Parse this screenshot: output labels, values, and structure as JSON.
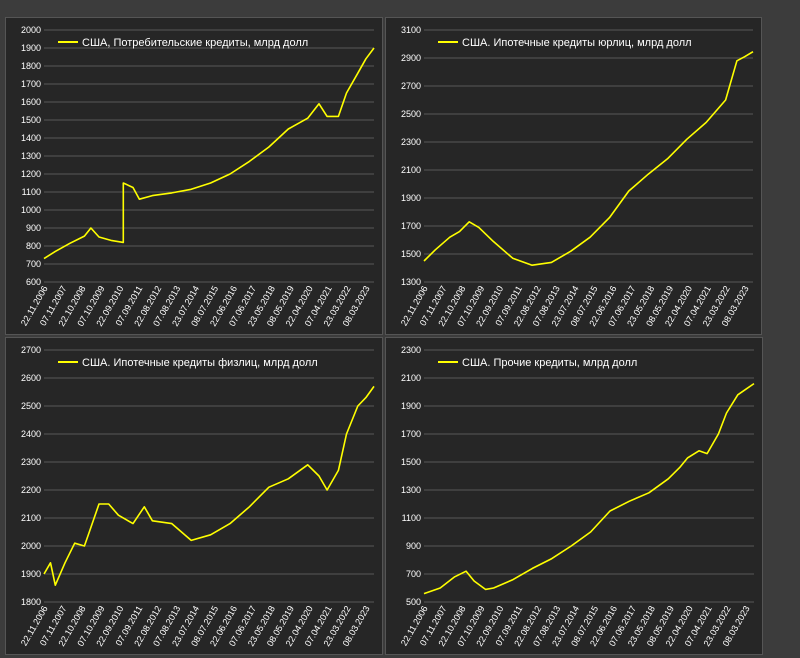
{
  "colors": {
    "background": "#3c3c3c",
    "panel": "#262626",
    "grid": "#8a8a8a",
    "series": "#ffff00",
    "text": "#ffffff"
  },
  "x_tick_labels": [
    "22.11.2006",
    "07.11.2007",
    "22.10.2008",
    "07.10.2009",
    "22.09.2010",
    "07.09.2011",
    "22.08.2012",
    "07.08.2013",
    "23.07.2014",
    "08.07.2015",
    "22.06.2016",
    "07.06.2017",
    "23.05.2018",
    "08.05.2019",
    "22.04.2020",
    "07.04.2021",
    "23.03.2022",
    "08.03.2023"
  ],
  "chart_data": [
    {
      "type": "line",
      "legend": "США, Потребительские кредиты, млрд долл",
      "legend_position": "top-left",
      "grid": true,
      "ylim": [
        600,
        2000
      ],
      "yticks": [
        600,
        700,
        800,
        900,
        1000,
        1100,
        1200,
        1300,
        1400,
        1500,
        1600,
        1700,
        1800,
        1900,
        2000
      ],
      "x_range": [
        "2006-11",
        "2023-11"
      ],
      "points": [
        [
          "2006-11",
          730
        ],
        [
          "2007-06",
          770
        ],
        [
          "2008-03",
          815
        ],
        [
          "2008-12",
          855
        ],
        [
          "2009-04",
          900
        ],
        [
          "2009-09",
          850
        ],
        [
          "2010-05",
          830
        ],
        [
          "2010-12",
          820
        ],
        [
          "2010-12",
          1150
        ],
        [
          "2011-06",
          1125
        ],
        [
          "2011-10",
          1060
        ],
        [
          "2012-06",
          1080
        ],
        [
          "2013-06",
          1095
        ],
        [
          "2014-06",
          1115
        ],
        [
          "2015-06",
          1150
        ],
        [
          "2016-06",
          1200
        ],
        [
          "2017-06",
          1270
        ],
        [
          "2018-06",
          1350
        ],
        [
          "2019-06",
          1450
        ],
        [
          "2020-06",
          1510
        ],
        [
          "2021-01",
          1590
        ],
        [
          "2021-06",
          1520
        ],
        [
          "2022-01",
          1520
        ],
        [
          "2022-06",
          1650
        ],
        [
          "2023-01",
          1760
        ],
        [
          "2023-06",
          1840
        ],
        [
          "2023-11",
          1900
        ]
      ]
    },
    {
      "type": "line",
      "legend": "США. Ипотечные кредиты юрлиц, млрд долл",
      "legend_position": "top-left",
      "grid": true,
      "ylim": [
        1300,
        3100
      ],
      "yticks": [
        1300,
        1500,
        1700,
        1900,
        2100,
        2300,
        2500,
        2700,
        2900,
        3100
      ],
      "x_range": [
        "2006-11",
        "2023-11"
      ],
      "points": [
        [
          "2006-11",
          1450
        ],
        [
          "2007-06",
          1530
        ],
        [
          "2008-03",
          1620
        ],
        [
          "2008-09",
          1660
        ],
        [
          "2009-03",
          1730
        ],
        [
          "2009-09",
          1690
        ],
        [
          "2010-06",
          1590
        ],
        [
          "2011-06",
          1470
        ],
        [
          "2012-06",
          1420
        ],
        [
          "2013-06",
          1440
        ],
        [
          "2014-06",
          1520
        ],
        [
          "2015-06",
          1620
        ],
        [
          "2016-06",
          1760
        ],
        [
          "2017-06",
          1950
        ],
        [
          "2018-06",
          2070
        ],
        [
          "2019-06",
          2180
        ],
        [
          "2020-06",
          2320
        ],
        [
          "2021-06",
          2440
        ],
        [
          "2022-06",
          2600
        ],
        [
          "2023-01",
          2880
        ],
        [
          "2023-06",
          2910
        ],
        [
          "2023-11",
          2945
        ]
      ]
    },
    {
      "type": "line",
      "legend": "США. Ипотечные кредиты физлиц, млрд долл",
      "legend_position": "top-left",
      "grid": true,
      "ylim": [
        1800,
        2700
      ],
      "yticks": [
        1800,
        1900,
        2000,
        2100,
        2200,
        2300,
        2400,
        2500,
        2600,
        2700
      ],
      "x_range": [
        "2006-11",
        "2023-11"
      ],
      "points": [
        [
          "2006-11",
          1900
        ],
        [
          "2007-03",
          1940
        ],
        [
          "2007-06",
          1860
        ],
        [
          "2007-12",
          1940
        ],
        [
          "2008-06",
          2010
        ],
        [
          "2008-12",
          2000
        ],
        [
          "2009-03",
          2050
        ],
        [
          "2009-09",
          2150
        ],
        [
          "2010-03",
          2150
        ],
        [
          "2010-09",
          2110
        ],
        [
          "2011-06",
          2080
        ],
        [
          "2012-01",
          2140
        ],
        [
          "2012-06",
          2090
        ],
        [
          "2013-06",
          2080
        ],
        [
          "2014-06",
          2020
        ],
        [
          "2015-06",
          2040
        ],
        [
          "2016-06",
          2080
        ],
        [
          "2017-06",
          2140
        ],
        [
          "2018-06",
          2210
        ],
        [
          "2019-06",
          2240
        ],
        [
          "2020-06",
          2290
        ],
        [
          "2021-01",
          2250
        ],
        [
          "2021-06",
          2200
        ],
        [
          "2022-01",
          2270
        ],
        [
          "2022-06",
          2400
        ],
        [
          "2023-01",
          2500
        ],
        [
          "2023-06",
          2530
        ],
        [
          "2023-11",
          2570
        ]
      ]
    },
    {
      "type": "line",
      "legend": "США. Прочие кредиты, млрд долл",
      "legend_position": "top-left",
      "grid": true,
      "ylim": [
        500,
        2300
      ],
      "yticks": [
        500,
        700,
        900,
        1100,
        1300,
        1500,
        1700,
        1900,
        2100,
        2300
      ],
      "x_range": [
        "2006-11",
        "2023-11"
      ],
      "points": [
        [
          "2006-11",
          560
        ],
        [
          "2007-09",
          600
        ],
        [
          "2008-06",
          680
        ],
        [
          "2009-01",
          720
        ],
        [
          "2009-06",
          650
        ],
        [
          "2010-01",
          590
        ],
        [
          "2010-06",
          600
        ],
        [
          "2011-06",
          660
        ],
        [
          "2012-06",
          740
        ],
        [
          "2013-06",
          810
        ],
        [
          "2014-06",
          900
        ],
        [
          "2015-06",
          1000
        ],
        [
          "2016-06",
          1150
        ],
        [
          "2017-06",
          1220
        ],
        [
          "2018-06",
          1280
        ],
        [
          "2019-06",
          1380
        ],
        [
          "2020-01",
          1460
        ],
        [
          "2020-06",
          1530
        ],
        [
          "2021-01",
          1580
        ],
        [
          "2021-06",
          1560
        ],
        [
          "2022-01",
          1700
        ],
        [
          "2022-06",
          1850
        ],
        [
          "2023-01",
          1980
        ],
        [
          "2023-06",
          2020
        ],
        [
          "2023-11",
          2060
        ]
      ]
    }
  ]
}
